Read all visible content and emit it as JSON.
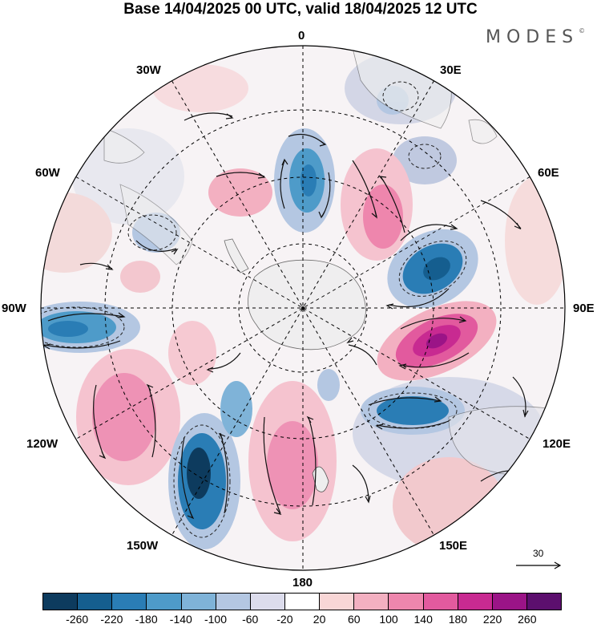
{
  "title": "Base 14/04/2025 00 UTC, valid 18/04/2025 12 UTC",
  "brand": {
    "name": "MODES",
    "mark": "©"
  },
  "longitude_labels": {
    "lon_0": "0",
    "lon_30e": "30E",
    "lon_60e": "60E",
    "lon_90e": "90E",
    "lon_120e": "120E",
    "lon_150e": "150E",
    "lon_180": "180",
    "lon_150w": "150W",
    "lon_120w": "120W",
    "lon_90w": "90W",
    "lon_60w": "60W",
    "lon_30w": "30W"
  },
  "vector_scale": {
    "value": "30"
  },
  "colorbar": {
    "colors": [
      "#0d3b5e",
      "#155e8f",
      "#2a7db5",
      "#4e9bc9",
      "#7fb3d8",
      "#b4c7e2",
      "#dcdcec",
      "#ffffff",
      "#f8d6d6",
      "#f3b0c1",
      "#ee86ad",
      "#e25a9e",
      "#c82a91",
      "#9b1487",
      "#5c0f6e"
    ],
    "tick_labels": [
      "-260",
      "-220",
      "-180",
      "-140",
      "-100",
      "-60",
      "-20",
      "20",
      "60",
      "100",
      "140",
      "180",
      "220",
      "260"
    ]
  },
  "map_colors": {
    "land": "#eeeeee",
    "coast": "#555555",
    "grid": "#000000"
  }
}
